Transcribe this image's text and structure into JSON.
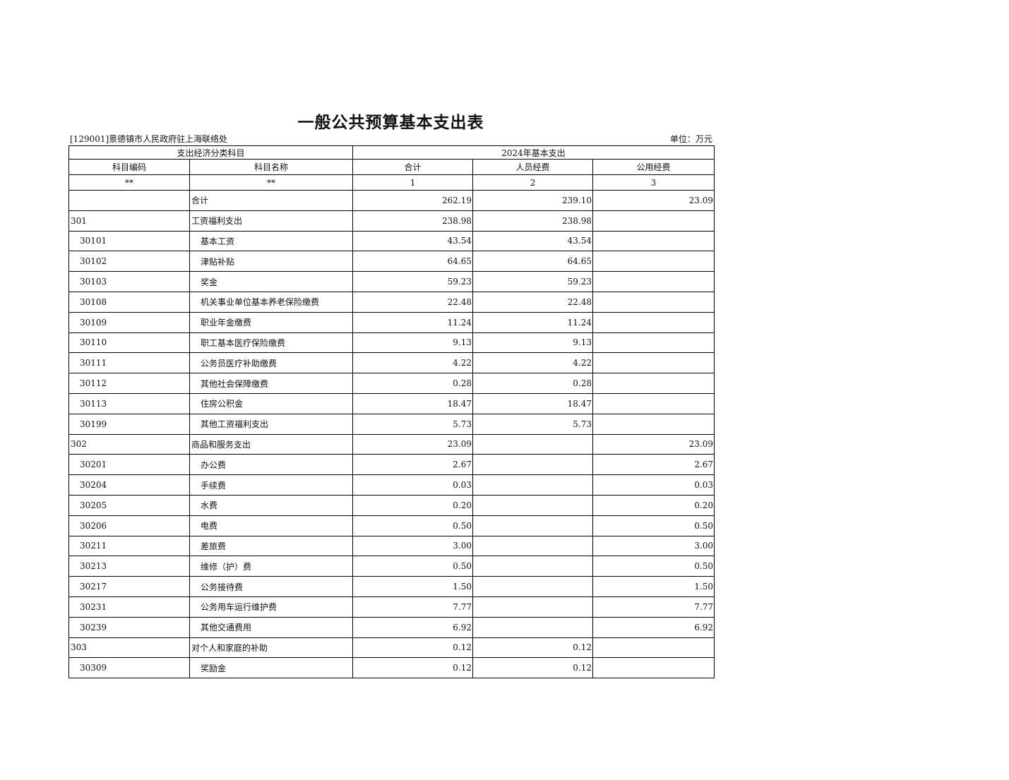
{
  "title": "一般公共预算基本支出表",
  "org": "[129001]景德镇市人民政府驻上海联络处",
  "unit": "单位：万元",
  "header": {
    "group_left": "支出经济分类科目",
    "group_right": "2024年基本支出",
    "columns": [
      "科目编码",
      "科目名称",
      "合计",
      "人员经费",
      "公用经费"
    ],
    "index": [
      "**",
      "**",
      "1",
      "2",
      "3"
    ]
  },
  "rows": [
    {
      "code": "",
      "name": "合计",
      "total": "262.19",
      "personnel": "239.10",
      "public": "23.09",
      "level": 0
    },
    {
      "code": "301",
      "name": "工资福利支出",
      "total": "238.98",
      "personnel": "238.98",
      "public": "",
      "level": 0
    },
    {
      "code": "30101",
      "name": "基本工资",
      "total": "43.54",
      "personnel": "43.54",
      "public": "",
      "level": 1
    },
    {
      "code": "30102",
      "name": "津贴补贴",
      "total": "64.65",
      "personnel": "64.65",
      "public": "",
      "level": 1
    },
    {
      "code": "30103",
      "name": "奖金",
      "total": "59.23",
      "personnel": "59.23",
      "public": "",
      "level": 1
    },
    {
      "code": "30108",
      "name": "机关事业单位基本养老保险缴费",
      "total": "22.48",
      "personnel": "22.48",
      "public": "",
      "level": 1
    },
    {
      "code": "30109",
      "name": "职业年金缴费",
      "total": "11.24",
      "personnel": "11.24",
      "public": "",
      "level": 1
    },
    {
      "code": "30110",
      "name": "职工基本医疗保险缴费",
      "total": "9.13",
      "personnel": "9.13",
      "public": "",
      "level": 1
    },
    {
      "code": "30111",
      "name": "公务员医疗补助缴费",
      "total": "4.22",
      "personnel": "4.22",
      "public": "",
      "level": 1
    },
    {
      "code": "30112",
      "name": "其他社会保障缴费",
      "total": "0.28",
      "personnel": "0.28",
      "public": "",
      "level": 1
    },
    {
      "code": "30113",
      "name": "住房公积金",
      "total": "18.47",
      "personnel": "18.47",
      "public": "",
      "level": 1
    },
    {
      "code": "30199",
      "name": "其他工资福利支出",
      "total": "5.73",
      "personnel": "5.73",
      "public": "",
      "level": 1
    },
    {
      "code": "302",
      "name": "商品和服务支出",
      "total": "23.09",
      "personnel": "",
      "public": "23.09",
      "level": 0
    },
    {
      "code": "30201",
      "name": "办公费",
      "total": "2.67",
      "personnel": "",
      "public": "2.67",
      "level": 1
    },
    {
      "code": "30204",
      "name": "手续费",
      "total": "0.03",
      "personnel": "",
      "public": "0.03",
      "level": 1
    },
    {
      "code": "30205",
      "name": "水费",
      "total": "0.20",
      "personnel": "",
      "public": "0.20",
      "level": 1
    },
    {
      "code": "30206",
      "name": "电费",
      "total": "0.50",
      "personnel": "",
      "public": "0.50",
      "level": 1
    },
    {
      "code": "30211",
      "name": "差旅费",
      "total": "3.00",
      "personnel": "",
      "public": "3.00",
      "level": 1
    },
    {
      "code": "30213",
      "name": "维修（护）费",
      "total": "0.50",
      "personnel": "",
      "public": "0.50",
      "level": 1
    },
    {
      "code": "30217",
      "name": "公务接待费",
      "total": "1.50",
      "personnel": "",
      "public": "1.50",
      "level": 1
    },
    {
      "code": "30231",
      "name": "公务用车运行维护费",
      "total": "7.77",
      "personnel": "",
      "public": "7.77",
      "level": 1
    },
    {
      "code": "30239",
      "name": "其他交通费用",
      "total": "6.92",
      "personnel": "",
      "public": "6.92",
      "level": 1
    },
    {
      "code": "303",
      "name": "对个人和家庭的补助",
      "total": "0.12",
      "personnel": "0.12",
      "public": "",
      "level": 0
    },
    {
      "code": "30309",
      "name": "奖励金",
      "total": "0.12",
      "personnel": "0.12",
      "public": "",
      "level": 1
    }
  ]
}
